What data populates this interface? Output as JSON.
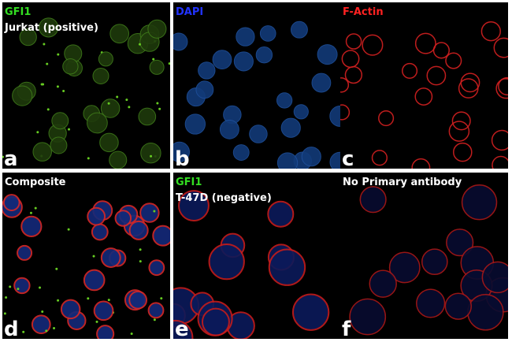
{
  "panels": [
    {
      "labels": [
        {
          "text": "GFI1",
          "color": "#33dd22"
        },
        {
          "text": "Jurkat (positive)",
          "color": "#ffffff"
        }
      ],
      "letter": "a"
    },
    {
      "labels": [
        {
          "text": "DAPI",
          "color": "#2233ff"
        }
      ],
      "letter": "b"
    },
    {
      "labels": [
        {
          "text": "F-Actin",
          "color": "#ff2222"
        }
      ],
      "letter": "c"
    },
    {
      "labels": [
        {
          "text": "Composite",
          "color": "#ffffff"
        }
      ],
      "letter": "d"
    },
    {
      "labels": [
        {
          "text": "GFI1",
          "color": "#33dd22"
        },
        {
          "text": "T-47D (negative)",
          "color": "#ffffff"
        }
      ],
      "letter": "e"
    },
    {
      "labels": [
        {
          "text": "No Primary antibody",
          "color": "#ffffff"
        }
      ],
      "letter": "f"
    }
  ]
}
